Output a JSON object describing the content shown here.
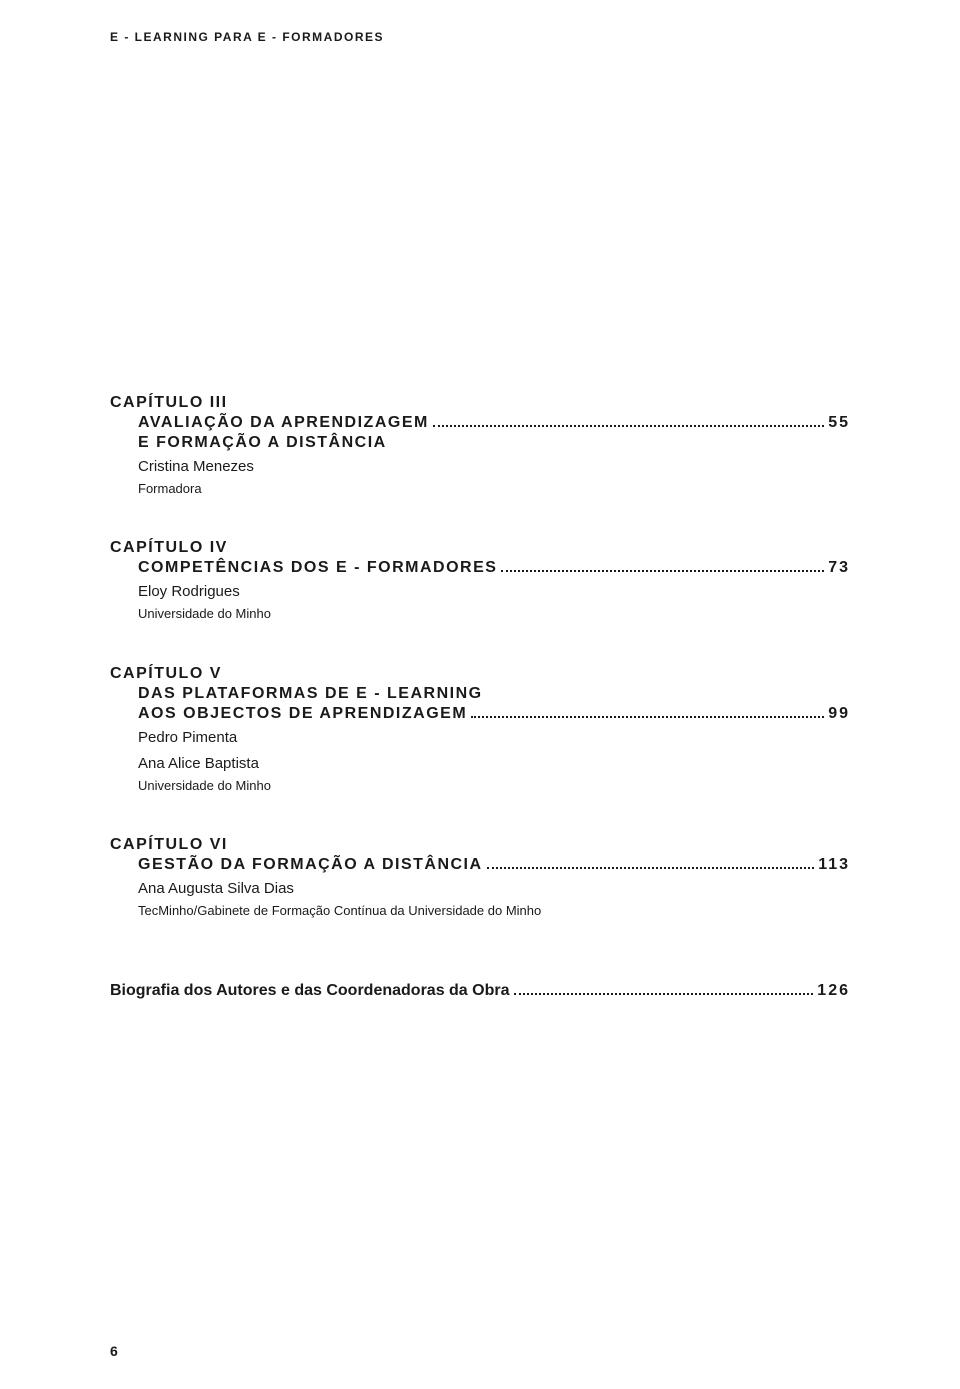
{
  "header": "E - LEARNING PARA E - FORMADORES",
  "chapters": [
    {
      "label": "CAPÍTULO III",
      "lines": [
        {
          "text": "AVALIAÇÃO DA APRENDIZAGEM",
          "page": "55"
        },
        {
          "text": "E FORMAÇÃO A DISTÂNCIA",
          "page": ""
        }
      ],
      "authors": [
        "Cristina Menezes"
      ],
      "affil": "Formadora"
    },
    {
      "label": "CAPÍTULO IV",
      "lines": [
        {
          "text": "COMPETÊNCIAS DOS E - FORMADORES",
          "page": "73"
        }
      ],
      "authors": [
        "Eloy Rodrigues"
      ],
      "affil": "Universidade do Minho"
    },
    {
      "label": "CAPÍTULO V",
      "lines": [
        {
          "text": "DAS PLATAFORMAS DE E - LEARNING",
          "page": ""
        },
        {
          "text": "AOS OBJECTOS DE APRENDIZAGEM",
          "page": "99"
        }
      ],
      "authors": [
        "Pedro Pimenta",
        "Ana Alice Baptista"
      ],
      "affil": "Universidade do Minho"
    },
    {
      "label": "CAPÍTULO VI",
      "lines": [
        {
          "text": "GESTÃO DA FORMAÇÃO A DISTÂNCIA",
          "page": "113"
        }
      ],
      "authors": [
        "Ana Augusta Silva Dias"
      ],
      "affil": "TecMinho/Gabinete de Formação Contínua da Universidade do Minho"
    }
  ],
  "bio": {
    "text": "Biografia dos Autores e das Coordenadoras da Obra",
    "page": "126"
  },
  "footer_page": "6",
  "colors": {
    "text": "#1a1a1a",
    "background": "#ffffff"
  }
}
